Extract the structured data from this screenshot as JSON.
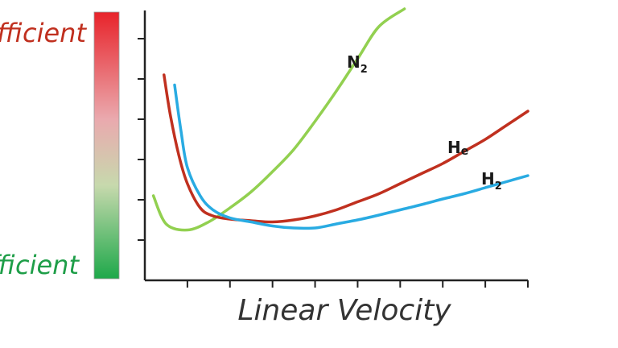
{
  "chart_data": {
    "type": "line",
    "title": "",
    "xlabel": "Linear Velocity",
    "ylabel": "",
    "xlim": [
      0,
      9
    ],
    "ylim": [
      0,
      6.7
    ],
    "x_ticks": 9,
    "y_ticks": 6,
    "grid": false,
    "scale_bar": {
      "top_label": "fficient",
      "bottom_label": "fficient",
      "top_color": "#e8232a",
      "mid_color": "#eaa9ae",
      "bottom_color": "#1ea84a"
    },
    "series": [
      {
        "name": "N",
        "subscript": "2",
        "color": "#92d050",
        "x": [
          0.2,
          0.5,
          1.0,
          1.5,
          2.0,
          2.5,
          3.0,
          3.5,
          4.0,
          4.5,
          5.0,
          5.5,
          6.1
        ],
        "y": [
          2.1,
          1.4,
          1.25,
          1.45,
          1.8,
          2.2,
          2.7,
          3.25,
          3.95,
          4.7,
          5.5,
          6.3,
          6.75
        ]
      },
      {
        "name": "H",
        "subscript": "e",
        "color": "#c0301f",
        "x": [
          0.45,
          0.6,
          0.8,
          1.0,
          1.3,
          1.6,
          2.0,
          2.5,
          3.0,
          3.5,
          4.0,
          4.5,
          5.0,
          5.5,
          6.0,
          6.5,
          7.0,
          7.5,
          8.0,
          8.5,
          9.0
        ],
        "y": [
          5.1,
          4.1,
          3.1,
          2.4,
          1.8,
          1.6,
          1.52,
          1.48,
          1.45,
          1.5,
          1.6,
          1.75,
          1.95,
          2.15,
          2.4,
          2.65,
          2.9,
          3.2,
          3.5,
          3.85,
          4.2
        ]
      },
      {
        "name": "H",
        "subscript": "2",
        "color": "#29abe2",
        "x": [
          0.7,
          0.85,
          1.0,
          1.3,
          1.6,
          2.0,
          2.5,
          3.0,
          3.5,
          4.0,
          4.5,
          5.0,
          5.5,
          6.0,
          6.5,
          7.0,
          7.5,
          8.0,
          8.5,
          9.0
        ],
        "y": [
          4.85,
          3.7,
          2.8,
          2.1,
          1.75,
          1.55,
          1.45,
          1.35,
          1.3,
          1.3,
          1.4,
          1.5,
          1.62,
          1.75,
          1.88,
          2.02,
          2.15,
          2.3,
          2.45,
          2.6
        ]
      }
    ]
  }
}
